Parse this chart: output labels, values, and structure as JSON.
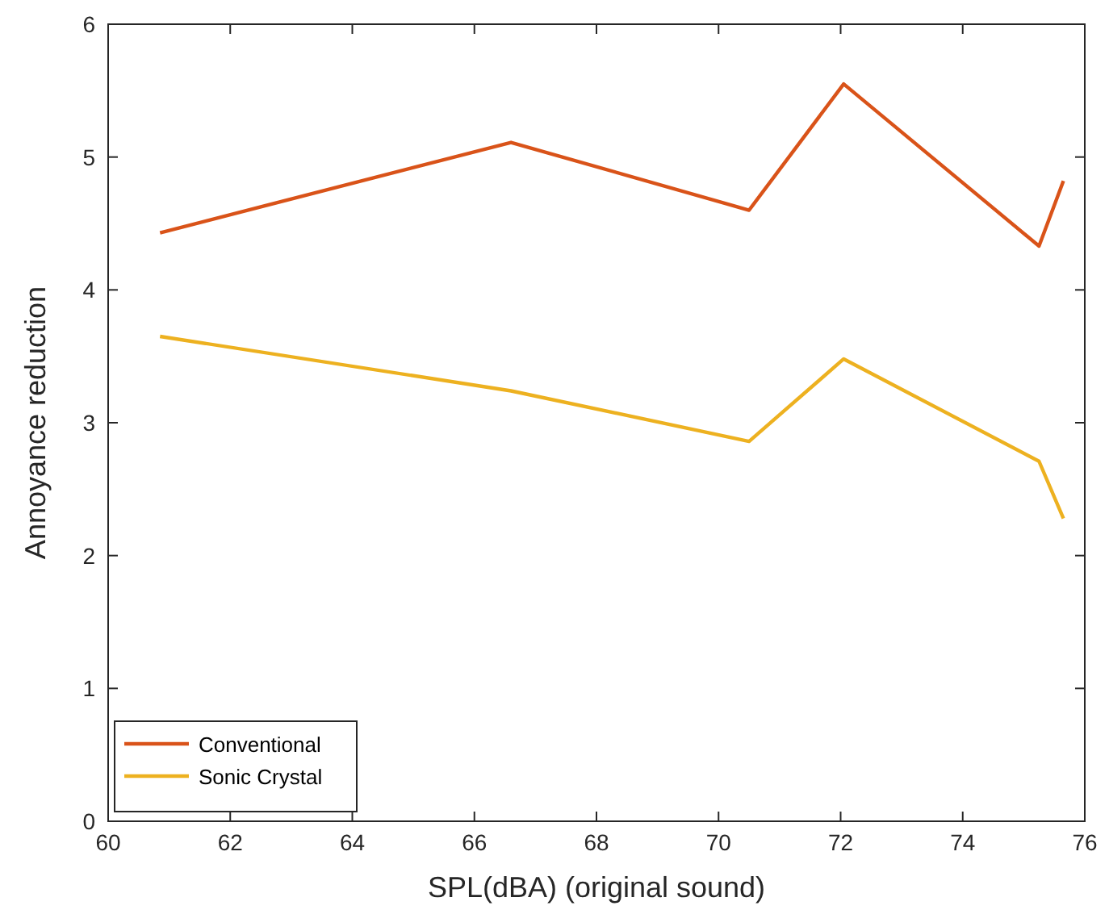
{
  "chart_data": {
    "type": "line",
    "xlabel": "SPL(dBA) (original sound)",
    "ylabel": "Annoyance reduction",
    "xlim": [
      60,
      76
    ],
    "xticks": [
      60,
      62,
      64,
      66,
      68,
      70,
      72,
      74,
      76
    ],
    "ylim": [
      0,
      6
    ],
    "yticks": [
      0,
      1,
      2,
      3,
      4,
      5,
      6
    ],
    "grid": false,
    "legend": "bottom left",
    "marker": "none",
    "line_style": "solid",
    "series": [
      {
        "name": "Conventional",
        "color": "#d95319",
        "x": [
          60.85,
          66.6,
          70.5,
          72.05,
          75.25,
          75.65
        ],
        "values": [
          4.43,
          5.11,
          4.6,
          5.55,
          4.33,
          4.82
        ]
      },
      {
        "name": "Sonic Crystal",
        "color": "#edb120",
        "x": [
          60.85,
          66.6,
          70.5,
          72.05,
          75.25,
          75.65
        ],
        "values": [
          3.65,
          3.24,
          2.86,
          3.48,
          2.71,
          2.28
        ]
      }
    ]
  }
}
